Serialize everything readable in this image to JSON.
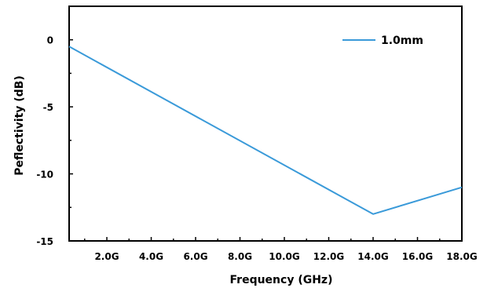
{
  "chart_data": {
    "type": "line",
    "title": "",
    "xlabel": "Frequency (GHz)",
    "ylabel": "Peflectivity (dB)",
    "xlim": [
      0.3,
      18
    ],
    "ylim": [
      -15,
      2.5
    ],
    "x_ticks": [
      2,
      4,
      6,
      8,
      10,
      12,
      14,
      16,
      18
    ],
    "x_tick_labels": [
      "2.0G",
      "4.0G",
      "6.0G",
      "8.0G",
      "10.0G",
      "12.0G",
      "14.0G",
      "16.0G",
      "18.0G"
    ],
    "y_ticks": [
      0,
      -5,
      -10,
      -15
    ],
    "y_tick_labels": [
      "0",
      "-5",
      "-10",
      "-15"
    ],
    "grid": false,
    "legend_position": "top-right",
    "series": [
      {
        "name": "1.0mm",
        "color": "#3a9ad9",
        "x": [
          0.3,
          14,
          18
        ],
        "y": [
          -0.5,
          -13,
          -11
        ]
      }
    ]
  }
}
